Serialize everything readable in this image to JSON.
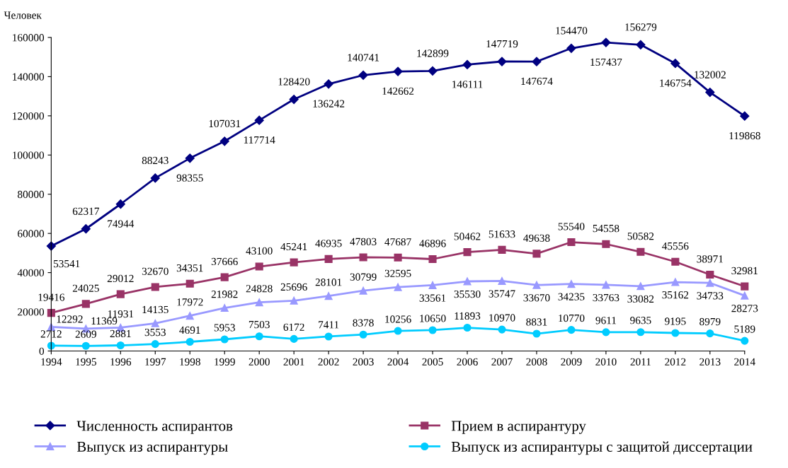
{
  "chart_data": {
    "type": "line",
    "ylabel": "Человек",
    "categories": [
      "1994",
      "1995",
      "1996",
      "1997",
      "1998",
      "1999",
      "2000",
      "2001",
      "2002",
      "2003",
      "2004",
      "2005",
      "2006",
      "2007",
      "2008",
      "2009",
      "2010",
      "2011",
      "2012",
      "2013",
      "2014"
    ],
    "ylim": [
      0,
      160000
    ],
    "yticks": [
      0,
      20000,
      40000,
      60000,
      80000,
      100000,
      120000,
      140000,
      160000
    ],
    "grid": false,
    "legend": "bottom",
    "data_labels": true,
    "series": [
      {
        "name": "Численность аспирантов",
        "color": "#000080",
        "marker": "diamond",
        "values": [
          53541,
          62317,
          74944,
          88243,
          98355,
          107031,
          117714,
          128420,
          136242,
          140741,
          142662,
          142899,
          146111,
          147719,
          147674,
          154470,
          157437,
          156279,
          146754,
          132002,
          119868
        ]
      },
      {
        "name": "Прием в аспирантуру",
        "color": "#993366",
        "marker": "square",
        "values": [
          19416,
          24025,
          29012,
          32670,
          34351,
          37666,
          43100,
          45241,
          46935,
          47803,
          47687,
          46896,
          50462,
          51633,
          49638,
          55540,
          54558,
          50582,
          45556,
          38971,
          32981
        ]
      },
      {
        "name": "Выпуск из аспирантуры",
        "color": "#9999ff",
        "marker": "triangle",
        "values": [
          12292,
          11369,
          11931,
          14135,
          17972,
          21982,
          24828,
          25696,
          28101,
          30799,
          32595,
          33561,
          35530,
          35747,
          33670,
          34235,
          33763,
          33082,
          35162,
          34733,
          28273
        ]
      },
      {
        "name": "Выпуск из аспирантуры с защитой диссертации",
        "color": "#00ccff",
        "marker": "circle",
        "values": [
          2712,
          2609,
          2881,
          3553,
          4691,
          5953,
          7503,
          6172,
          7411,
          8378,
          10256,
          10650,
          11893,
          10970,
          8831,
          10770,
          9611,
          9635,
          9195,
          8979,
          5189
        ]
      }
    ]
  }
}
